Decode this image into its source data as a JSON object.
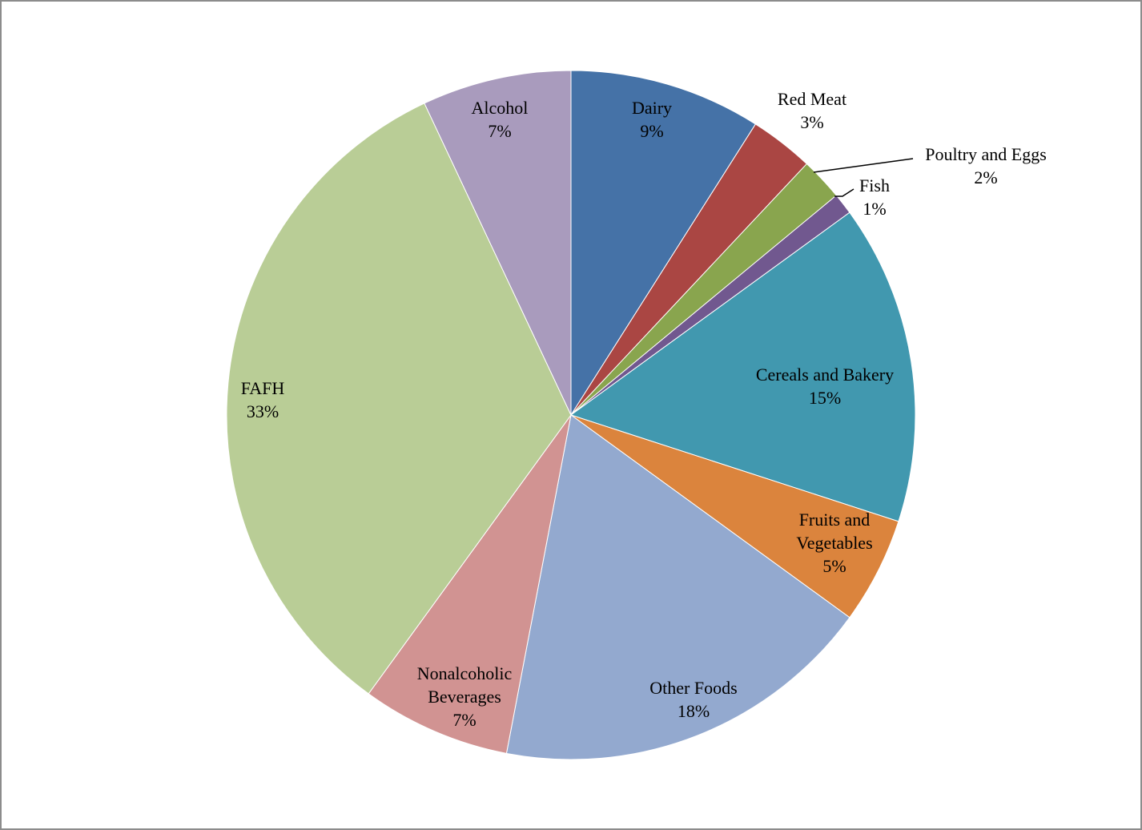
{
  "chart_data": {
    "type": "pie",
    "title": "",
    "start_angle_deg": 0,
    "direction": "clockwise",
    "slices": [
      {
        "label": "Dairy",
        "value": 9,
        "value_label": "9%",
        "color": "#4572A7"
      },
      {
        "label": "Red Meat",
        "value": 3,
        "value_label": "3%",
        "color": "#AA4643"
      },
      {
        "label": "Poultry and Eggs",
        "value": 2,
        "value_label": "2%",
        "color": "#89A54E"
      },
      {
        "label": "Fish",
        "value": 1,
        "value_label": "1%",
        "color": "#71588F"
      },
      {
        "label": "Cereals and Bakery",
        "value": 15,
        "value_label": "15%",
        "color": "#4198AF"
      },
      {
        "label": "Fruits and Vegetables",
        "value": 5,
        "value_label": "5%",
        "color": "#DB843D"
      },
      {
        "label": "Other Foods",
        "value": 18,
        "value_label": "18%",
        "color": "#93A9CF"
      },
      {
        "label": "Nonalcoholic Beverages",
        "value": 7,
        "value_label": "7%",
        "color": "#D19392"
      },
      {
        "label": "FAFH",
        "value": 33,
        "value_label": "33%",
        "color": "#B9CD96"
      },
      {
        "label": "Alcohol",
        "value": 7,
        "value_label": "7%",
        "color": "#A99BBD"
      }
    ]
  }
}
